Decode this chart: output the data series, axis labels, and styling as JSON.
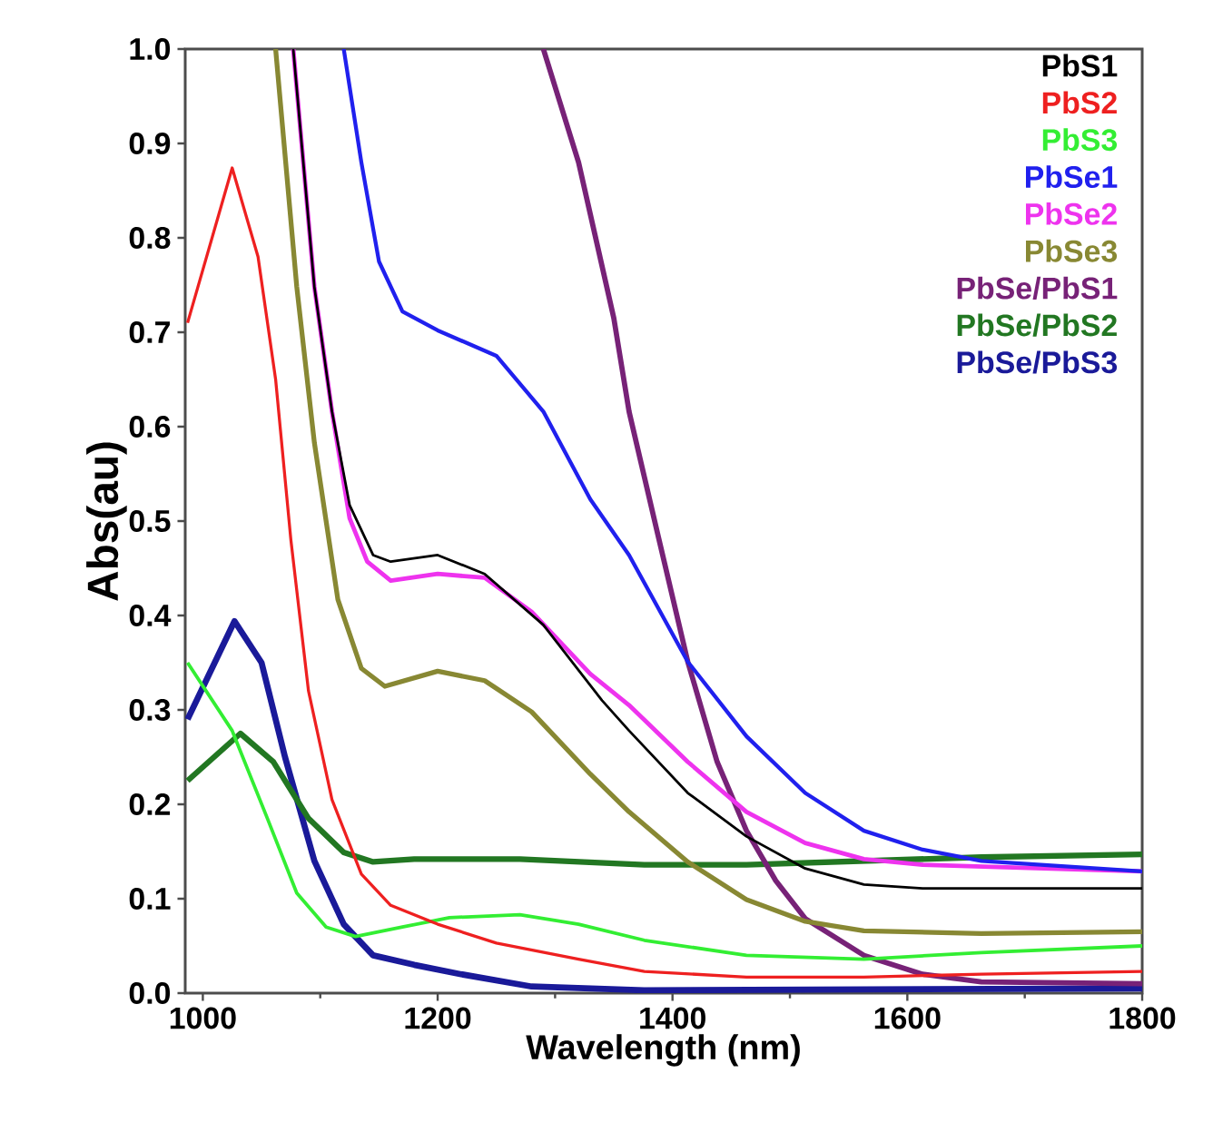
{
  "chart_data": {
    "type": "line",
    "xlabel": "Wavelength (nm)",
    "ylabel": "Abs(au)",
    "xlim": [
      985,
      1800
    ],
    "ylim": [
      0,
      1
    ],
    "xticks": [
      1000,
      1200,
      1400,
      1600,
      1800
    ],
    "yticks": [
      {
        "value": 0,
        "label": "0.0"
      },
      0.1,
      0.2,
      0.3,
      0.4,
      0.5,
      0.6,
      0.7,
      0.8,
      0.9,
      {
        "value": 1,
        "label": "1.0"
      }
    ],
    "grid": false,
    "legend": "top right",
    "marker": "none",
    "line_style": "solid",
    "series": [
      {
        "name": "PbS1",
        "color": "#000000",
        "x": [
          1077,
          1095,
          1110,
          1125,
          1145,
          1160,
          1200,
          1240,
          1290,
          1340,
          1363,
          1413,
          1463,
          1513,
          1563,
          1613,
          1800
        ],
        "values": [
          1.0,
          0.748,
          0.616,
          0.517,
          0.464,
          0.457,
          0.464,
          0.444,
          0.39,
          0.31,
          0.278,
          0.212,
          0.166,
          0.132,
          0.115,
          0.111,
          0.111
        ]
      },
      {
        "name": "PbS2",
        "color": "#ee2020",
        "x": [
          987,
          1025,
          1047,
          1062,
          1075,
          1090,
          1110,
          1135,
          1160,
          1200,
          1250,
          1320,
          1376,
          1463,
          1563,
          1663,
          1800
        ],
        "values": [
          0.71,
          0.874,
          0.78,
          0.65,
          0.48,
          0.32,
          0.205,
          0.126,
          0.093,
          0.073,
          0.053,
          0.036,
          0.023,
          0.017,
          0.017,
          0.02,
          0.023
        ]
      },
      {
        "name": "PbS3",
        "color": "#33ee33",
        "x": [
          987,
          1025,
          1055,
          1080,
          1105,
          1130,
          1170,
          1210,
          1270,
          1320,
          1376,
          1463,
          1563,
          1663,
          1800
        ],
        "values": [
          0.35,
          0.278,
          0.185,
          0.106,
          0.07,
          0.06,
          0.07,
          0.08,
          0.083,
          0.073,
          0.056,
          0.04,
          0.036,
          0.043,
          0.05
        ]
      },
      {
        "name": "PbSe1",
        "color": "#2020ee",
        "x": [
          1120,
          1135,
          1150,
          1170,
          1200,
          1250,
          1290,
          1330,
          1363,
          1413,
          1463,
          1513,
          1563,
          1613,
          1663,
          1800
        ],
        "values": [
          1.0,
          0.88,
          0.775,
          0.722,
          0.702,
          0.675,
          0.616,
          0.523,
          0.464,
          0.351,
          0.272,
          0.212,
          0.172,
          0.152,
          0.14,
          0.129
        ]
      },
      {
        "name": "PbSe2",
        "color": "#ee33ee",
        "x": [
          1077,
          1095,
          1110,
          1125,
          1140,
          1160,
          1200,
          1240,
          1280,
          1330,
          1363,
          1413,
          1463,
          1513,
          1563,
          1613,
          1800
        ],
        "values": [
          1.0,
          0.748,
          0.616,
          0.503,
          0.457,
          0.437,
          0.444,
          0.44,
          0.404,
          0.338,
          0.305,
          0.245,
          0.192,
          0.159,
          0.142,
          0.136,
          0.129
        ]
      },
      {
        "name": "PbSe3",
        "color": "#888833",
        "x": [
          1062,
          1080,
          1095,
          1115,
          1135,
          1155,
          1200,
          1240,
          1280,
          1330,
          1363,
          1413,
          1463,
          1513,
          1563,
          1663,
          1800
        ],
        "values": [
          1.0,
          0.748,
          0.583,
          0.417,
          0.344,
          0.325,
          0.341,
          0.331,
          0.298,
          0.232,
          0.192,
          0.139,
          0.099,
          0.076,
          0.066,
          0.063,
          0.065
        ]
      },
      {
        "name": "PbSe/PbS1",
        "color": "#772277",
        "x": [
          1290,
          1320,
          1350,
          1363,
          1388,
          1413,
          1438,
          1463,
          1488,
          1513,
          1563,
          1613,
          1663,
          1800
        ],
        "values": [
          1.0,
          0.88,
          0.715,
          0.616,
          0.483,
          0.351,
          0.245,
          0.172,
          0.119,
          0.079,
          0.04,
          0.02,
          0.012,
          0.01
        ]
      },
      {
        "name": "PbSe/PbS2",
        "color": "#227722",
        "x": [
          987,
          1032,
          1060,
          1090,
          1120,
          1145,
          1180,
          1270,
          1376,
          1463,
          1663,
          1800
        ],
        "values": [
          0.225,
          0.275,
          0.245,
          0.185,
          0.149,
          0.139,
          0.142,
          0.142,
          0.136,
          0.136,
          0.144,
          0.147
        ]
      },
      {
        "name": "PbSe/PbS3",
        "color": "#1a1a99",
        "x": [
          987,
          1027,
          1050,
          1070,
          1095,
          1120,
          1145,
          1180,
          1220,
          1280,
          1376,
          1800
        ],
        "values": [
          0.29,
          0.394,
          0.35,
          0.25,
          0.14,
          0.073,
          0.04,
          0.03,
          0.02,
          0.007,
          0.003,
          0.005
        ]
      }
    ]
  }
}
